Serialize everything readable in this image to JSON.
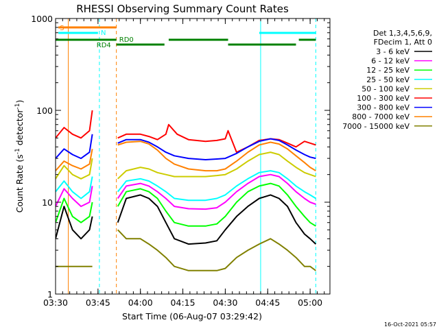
{
  "chart_data": {
    "type": "line",
    "title": "RHESSI Observing Summary Count Rates",
    "xlabel": "Start Time (06-Aug-07 03:29:42)",
    "ylabel_main": "Count Rate (s",
    "ylabel_sup1": "-1",
    "ylabel_mid": " detector",
    "ylabel_sup2": "-1",
    "ylabel_end": ")",
    "yscale": "log",
    "ylim": [
      1,
      1000
    ],
    "xlim_minutes": [
      0,
      97
    ],
    "x_ticks": [
      {
        "label": "03:30",
        "min": 0
      },
      {
        "label": "03:45",
        "min": 15
      },
      {
        "label": "04:00",
        "min": 30
      },
      {
        "label": "04:15",
        "min": 45
      },
      {
        "label": "04:30",
        "min": 60
      },
      {
        "label": "04:45",
        "min": 75
      },
      {
        "label": "05:00",
        "min": 90
      }
    ],
    "y_ticks": [
      {
        "label": "1",
        "value": 1
      },
      {
        "label": "10",
        "value": 10
      },
      {
        "label": "100",
        "value": 100
      },
      {
        "label": "1000",
        "value": 1000
      }
    ],
    "legend": {
      "header1": "Det 1,3,4,5,6,9,",
      "header2": "FDecim 1, Att 0",
      "placement": "right"
    },
    "series": [
      {
        "name": "3 - 6 keV",
        "color": "#000000",
        "values": [
          [
            0,
            4
          ],
          [
            3,
            9
          ],
          [
            6,
            5
          ],
          [
            9,
            4
          ],
          [
            12,
            5
          ],
          [
            13,
            7
          ],
          [
            22,
            6
          ],
          [
            25,
            11
          ],
          [
            30,
            12
          ],
          [
            33,
            11
          ],
          [
            36,
            9
          ],
          [
            39,
            6
          ],
          [
            42,
            4
          ],
          [
            47,
            3.5
          ],
          [
            53,
            3.6
          ],
          [
            57,
            3.8
          ],
          [
            60,
            5
          ],
          [
            64,
            7
          ],
          [
            68,
            9
          ],
          [
            72,
            11
          ],
          [
            76,
            12
          ],
          [
            79,
            11
          ],
          [
            82,
            9
          ],
          [
            85,
            6
          ],
          [
            88,
            4.5
          ],
          [
            90,
            4
          ],
          [
            92,
            3.5
          ]
        ]
      },
      {
        "name": "6 - 12 keV",
        "color": "#ff00ff",
        "values": [
          [
            0,
            9
          ],
          [
            3,
            14
          ],
          [
            6,
            11
          ],
          [
            9,
            9
          ],
          [
            12,
            10
          ],
          [
            13,
            15
          ],
          [
            22,
            11
          ],
          [
            25,
            15
          ],
          [
            30,
            16
          ],
          [
            33,
            15
          ],
          [
            36,
            13
          ],
          [
            39,
            11
          ],
          [
            42,
            9
          ],
          [
            47,
            8.5
          ],
          [
            53,
            8.4
          ],
          [
            57,
            8.7
          ],
          [
            60,
            10
          ],
          [
            64,
            13
          ],
          [
            68,
            16
          ],
          [
            72,
            19
          ],
          [
            76,
            20
          ],
          [
            79,
            19
          ],
          [
            82,
            16
          ],
          [
            85,
            13
          ],
          [
            88,
            11
          ],
          [
            90,
            10
          ],
          [
            92,
            9.5
          ]
        ]
      },
      {
        "name": "12 - 25 keV",
        "color": "#00ff00",
        "values": [
          [
            0,
            6
          ],
          [
            3,
            11
          ],
          [
            6,
            7
          ],
          [
            9,
            6
          ],
          [
            12,
            7
          ],
          [
            13,
            10
          ],
          [
            22,
            9
          ],
          [
            25,
            13
          ],
          [
            30,
            14
          ],
          [
            33,
            13
          ],
          [
            36,
            11
          ],
          [
            39,
            8
          ],
          [
            42,
            6
          ],
          [
            47,
            5.5
          ],
          [
            53,
            5.5
          ],
          [
            57,
            5.8
          ],
          [
            60,
            7
          ],
          [
            64,
            10
          ],
          [
            68,
            13
          ],
          [
            72,
            15
          ],
          [
            76,
            16
          ],
          [
            79,
            15
          ],
          [
            82,
            12
          ],
          [
            85,
            9
          ],
          [
            88,
            7
          ],
          [
            90,
            6
          ],
          [
            92,
            5.5
          ]
        ]
      },
      {
        "name": "25 - 50 keV",
        "color": "#00ffff",
        "values": [
          [
            0,
            13
          ],
          [
            3,
            17
          ],
          [
            6,
            13
          ],
          [
            9,
            11
          ],
          [
            12,
            13
          ],
          [
            13,
            19
          ],
          [
            22,
            13
          ],
          [
            25,
            17
          ],
          [
            30,
            18
          ],
          [
            33,
            17
          ],
          [
            36,
            15
          ],
          [
            39,
            13
          ],
          [
            42,
            11
          ],
          [
            47,
            10.5
          ],
          [
            53,
            10.5
          ],
          [
            57,
            11
          ],
          [
            60,
            12
          ],
          [
            64,
            15
          ],
          [
            68,
            18
          ],
          [
            72,
            21
          ],
          [
            76,
            22
          ],
          [
            79,
            21
          ],
          [
            82,
            18
          ],
          [
            85,
            15
          ],
          [
            88,
            13
          ],
          [
            90,
            12
          ],
          [
            92,
            11
          ]
        ]
      },
      {
        "name": "50 - 100 keV",
        "color": "#cccc00",
        "values": [
          [
            0,
            18
          ],
          [
            3,
            25
          ],
          [
            6,
            20
          ],
          [
            9,
            18
          ],
          [
            12,
            20
          ],
          [
            13,
            30
          ],
          [
            22,
            18
          ],
          [
            25,
            22
          ],
          [
            30,
            24
          ],
          [
            33,
            23
          ],
          [
            36,
            21
          ],
          [
            39,
            20
          ],
          [
            42,
            19
          ],
          [
            47,
            19
          ],
          [
            53,
            19
          ],
          [
            57,
            19.5
          ],
          [
            60,
            20
          ],
          [
            64,
            23
          ],
          [
            68,
            28
          ],
          [
            72,
            33
          ],
          [
            76,
            35
          ],
          [
            79,
            33
          ],
          [
            82,
            28
          ],
          [
            85,
            24
          ],
          [
            88,
            21
          ],
          [
            90,
            20
          ],
          [
            92,
            19
          ]
        ]
      },
      {
        "name": "100 - 300 keV",
        "color": "#ff0000",
        "values": [
          [
            0,
            50
          ],
          [
            3,
            65
          ],
          [
            6,
            55
          ],
          [
            9,
            50
          ],
          [
            12,
            60
          ],
          [
            13,
            100
          ],
          [
            22,
            50
          ],
          [
            25,
            55
          ],
          [
            30,
            55
          ],
          [
            33,
            52
          ],
          [
            36,
            48
          ],
          [
            39,
            55
          ],
          [
            40,
            70
          ],
          [
            43,
            55
          ],
          [
            47,
            48
          ],
          [
            53,
            46
          ],
          [
            57,
            47
          ],
          [
            60,
            49
          ],
          [
            61,
            60
          ],
          [
            64,
            35
          ],
          [
            68,
            40
          ],
          [
            72,
            47
          ],
          [
            76,
            49
          ],
          [
            79,
            48
          ],
          [
            82,
            44
          ],
          [
            85,
            40
          ],
          [
            88,
            46
          ],
          [
            90,
            44
          ],
          [
            92,
            42
          ]
        ]
      },
      {
        "name": "300 - 800 keV",
        "color": "#0000ff",
        "values": [
          [
            0,
            30
          ],
          [
            3,
            38
          ],
          [
            6,
            33
          ],
          [
            9,
            30
          ],
          [
            12,
            35
          ],
          [
            13,
            55
          ],
          [
            22,
            44
          ],
          [
            25,
            48
          ],
          [
            30,
            48
          ],
          [
            33,
            45
          ],
          [
            36,
            40
          ],
          [
            39,
            35
          ],
          [
            42,
            32
          ],
          [
            47,
            30
          ],
          [
            53,
            29
          ],
          [
            57,
            29.5
          ],
          [
            60,
            30
          ],
          [
            64,
            34
          ],
          [
            68,
            40
          ],
          [
            72,
            46
          ],
          [
            76,
            49
          ],
          [
            79,
            47
          ],
          [
            82,
            42
          ],
          [
            85,
            37
          ],
          [
            88,
            33
          ],
          [
            90,
            31
          ],
          [
            92,
            30
          ]
        ]
      },
      {
        "name": "800 - 7000 keV",
        "color": "#ff8000",
        "values": [
          [
            0,
            22
          ],
          [
            3,
            28
          ],
          [
            6,
            25
          ],
          [
            9,
            23
          ],
          [
            12,
            26
          ],
          [
            13,
            38
          ],
          [
            22,
            42
          ],
          [
            25,
            45
          ],
          [
            30,
            46
          ],
          [
            33,
            43
          ],
          [
            36,
            37
          ],
          [
            39,
            30
          ],
          [
            42,
            26
          ],
          [
            47,
            23
          ],
          [
            53,
            22
          ],
          [
            57,
            22
          ],
          [
            60,
            23
          ],
          [
            64,
            28
          ],
          [
            68,
            35
          ],
          [
            72,
            42
          ],
          [
            76,
            45
          ],
          [
            79,
            43
          ],
          [
            82,
            38
          ],
          [
            85,
            32
          ],
          [
            88,
            27
          ],
          [
            90,
            24
          ],
          [
            92,
            22
          ]
        ]
      },
      {
        "name": "7000 - 15000 keV",
        "color": "#808000",
        "values": [
          [
            0,
            2
          ],
          [
            3,
            2
          ],
          [
            6,
            2
          ],
          [
            9,
            2
          ],
          [
            12,
            2
          ],
          [
            13,
            2
          ],
          [
            22,
            5
          ],
          [
            25,
            4
          ],
          [
            30,
            4
          ],
          [
            33,
            3.5
          ],
          [
            36,
            3
          ],
          [
            39,
            2.5
          ],
          [
            42,
            2
          ],
          [
            47,
            1.8
          ],
          [
            53,
            1.8
          ],
          [
            57,
            1.8
          ],
          [
            60,
            1.9
          ],
          [
            64,
            2.5
          ],
          [
            68,
            3
          ],
          [
            72,
            3.5
          ],
          [
            76,
            4
          ],
          [
            79,
            3.5
          ],
          [
            82,
            3
          ],
          [
            85,
            2.5
          ],
          [
            88,
            2
          ],
          [
            90,
            2
          ],
          [
            92,
            1.8
          ]
        ]
      }
    ],
    "annotations": {
      "S_label": "S",
      "N_label": "N",
      "RD0_label": "RD0",
      "RD4_label": "RD4",
      "S_bar": [
        [
          1,
          21.5
        ]
      ],
      "N_bars": [
        [
          1,
          15
        ],
        [
          72,
          92
        ]
      ],
      "RD_bars": [
        [
          0,
          21.5
        ],
        [
          21.5,
          38.5
        ],
        [
          40,
          61
        ],
        [
          61,
          85
        ],
        [
          86,
          92
        ]
      ],
      "vlines": [
        {
          "min": 0,
          "color": "#00ffff",
          "style": "solid"
        },
        {
          "min": 4.5,
          "color": "#ff8000",
          "style": "solid"
        },
        {
          "min": 15.5,
          "color": "#00ffff",
          "style": "dashed"
        },
        {
          "min": 21.5,
          "color": "#ff8000",
          "style": "dashed"
        },
        {
          "min": 72.5,
          "color": "#00ffff",
          "style": "solid"
        },
        {
          "min": 92,
          "color": "#00ffff",
          "style": "dashed"
        }
      ],
      "colors": {
        "S": "#ff8000",
        "N": "#00ffff",
        "RD": "#008000"
      }
    },
    "timestamp": "16-Oct-2021 05:57"
  }
}
